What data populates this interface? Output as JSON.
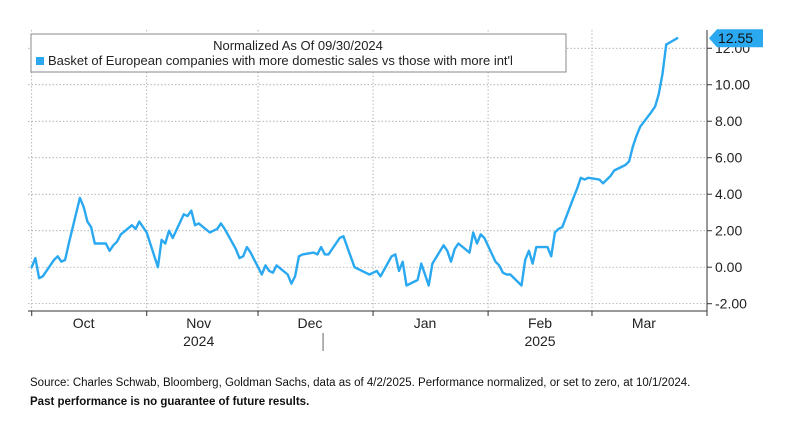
{
  "chart_data": {
    "type": "line",
    "title": "Normalized As Of 09/30/2024",
    "series": [
      {
        "name": "Basket of European companies with more domestic sales vs those with more int'l",
        "color": "#2aa8f0",
        "values": [
          [
            "2024-10-01",
            0.0
          ],
          [
            "2024-10-02",
            0.5
          ],
          [
            "2024-10-03",
            -0.6
          ],
          [
            "2024-10-04",
            -0.5
          ],
          [
            "2024-10-07",
            0.4
          ],
          [
            "2024-10-08",
            0.6
          ],
          [
            "2024-10-09",
            0.3
          ],
          [
            "2024-10-10",
            0.4
          ],
          [
            "2024-10-11",
            1.3
          ],
          [
            "2024-10-14",
            3.8
          ],
          [
            "2024-10-15",
            3.3
          ],
          [
            "2024-10-16",
            2.5
          ],
          [
            "2024-10-17",
            2.2
          ],
          [
            "2024-10-18",
            1.3
          ],
          [
            "2024-10-21",
            1.3
          ],
          [
            "2024-10-22",
            0.9
          ],
          [
            "2024-10-23",
            1.2
          ],
          [
            "2024-10-24",
            1.4
          ],
          [
            "2024-10-25",
            1.8
          ],
          [
            "2024-10-28",
            2.3
          ],
          [
            "2024-10-29",
            2.1
          ],
          [
            "2024-10-30",
            2.5
          ],
          [
            "2024-10-31",
            2.2
          ],
          [
            "2024-11-01",
            1.9
          ],
          [
            "2024-11-04",
            0.0
          ],
          [
            "2024-11-05",
            1.5
          ],
          [
            "2024-11-06",
            1.3
          ],
          [
            "2024-11-07",
            2.0
          ],
          [
            "2024-11-08",
            1.6
          ],
          [
            "2024-11-11",
            2.9
          ],
          [
            "2024-11-12",
            2.8
          ],
          [
            "2024-11-13",
            3.1
          ],
          [
            "2024-11-14",
            2.3
          ],
          [
            "2024-11-15",
            2.4
          ],
          [
            "2024-11-18",
            1.9
          ],
          [
            "2024-11-19",
            2.0
          ],
          [
            "2024-11-20",
            2.1
          ],
          [
            "2024-11-21",
            2.4
          ],
          [
            "2024-11-22",
            2.1
          ],
          [
            "2024-11-25",
            1.0
          ],
          [
            "2024-11-26",
            0.5
          ],
          [
            "2024-11-27",
            0.6
          ],
          [
            "2024-11-28",
            1.1
          ],
          [
            "2024-11-29",
            0.8
          ],
          [
            "2024-12-02",
            -0.4
          ],
          [
            "2024-12-03",
            0.1
          ],
          [
            "2024-12-04",
            -0.2
          ],
          [
            "2024-12-05",
            -0.3
          ],
          [
            "2024-12-06",
            0.1
          ],
          [
            "2024-12-09",
            -0.4
          ],
          [
            "2024-12-10",
            -0.9
          ],
          [
            "2024-12-11",
            -0.5
          ],
          [
            "2024-12-12",
            0.6
          ],
          [
            "2024-12-13",
            0.7
          ],
          [
            "2024-12-16",
            0.8
          ],
          [
            "2024-12-17",
            0.7
          ],
          [
            "2024-12-18",
            1.1
          ],
          [
            "2024-12-19",
            0.7
          ],
          [
            "2024-12-20",
            0.7
          ],
          [
            "2024-12-23",
            1.6
          ],
          [
            "2024-12-24",
            1.7
          ],
          [
            "2024-12-27",
            0.0
          ],
          [
            "2024-12-30",
            -0.3
          ],
          [
            "2024-12-31",
            -0.4
          ],
          [
            "2025-01-02",
            -0.2
          ],
          [
            "2025-01-03",
            -0.5
          ],
          [
            "2025-01-06",
            0.6
          ],
          [
            "2025-01-07",
            0.7
          ],
          [
            "2025-01-08",
            -0.2
          ],
          [
            "2025-01-09",
            0.3
          ],
          [
            "2025-01-10",
            -1.0
          ],
          [
            "2025-01-13",
            -0.7
          ],
          [
            "2025-01-14",
            0.2
          ],
          [
            "2025-01-15",
            -0.4
          ],
          [
            "2025-01-16",
            -1.0
          ],
          [
            "2025-01-17",
            0.2
          ],
          [
            "2025-01-20",
            1.2
          ],
          [
            "2025-01-21",
            0.9
          ],
          [
            "2025-01-22",
            0.3
          ],
          [
            "2025-01-23",
            1.0
          ],
          [
            "2025-01-24",
            1.3
          ],
          [
            "2025-01-27",
            0.8
          ],
          [
            "2025-01-28",
            1.9
          ],
          [
            "2025-01-29",
            1.3
          ],
          [
            "2025-01-30",
            1.8
          ],
          [
            "2025-01-31",
            1.6
          ],
          [
            "2025-02-03",
            0.3
          ],
          [
            "2025-02-04",
            0.1
          ],
          [
            "2025-02-05",
            -0.3
          ],
          [
            "2025-02-06",
            -0.4
          ],
          [
            "2025-02-07",
            -0.4
          ],
          [
            "2025-02-10",
            -1.0
          ],
          [
            "2025-02-11",
            0.4
          ],
          [
            "2025-02-12",
            0.9
          ],
          [
            "2025-02-13",
            0.2
          ],
          [
            "2025-02-14",
            1.1
          ],
          [
            "2025-02-17",
            1.1
          ],
          [
            "2025-02-18",
            0.6
          ],
          [
            "2025-02-19",
            1.9
          ],
          [
            "2025-02-20",
            2.1
          ],
          [
            "2025-02-21",
            2.2
          ],
          [
            "2025-02-24",
            3.8
          ],
          [
            "2025-02-25",
            4.3
          ],
          [
            "2025-02-26",
            4.9
          ],
          [
            "2025-02-27",
            4.8
          ],
          [
            "2025-02-28",
            4.9
          ],
          [
            "2025-03-03",
            4.8
          ],
          [
            "2025-03-04",
            4.6
          ],
          [
            "2025-03-05",
            4.8
          ],
          [
            "2025-03-06",
            5.0
          ],
          [
            "2025-03-07",
            5.3
          ],
          [
            "2025-03-10",
            5.6
          ],
          [
            "2025-03-11",
            5.8
          ],
          [
            "2025-03-12",
            6.6
          ],
          [
            "2025-03-13",
            7.2
          ],
          [
            "2025-03-14",
            7.7
          ],
          [
            "2025-03-17",
            8.5
          ],
          [
            "2025-03-18",
            8.8
          ],
          [
            "2025-03-19",
            9.5
          ],
          [
            "2025-03-20",
            10.6
          ],
          [
            "2025-03-21",
            12.2
          ],
          [
            "2025-03-24",
            12.55
          ]
        ]
      }
    ],
    "last_value_label": "12.55",
    "y_ticks": [
      "-2.00",
      "0.00",
      "2.00",
      "4.00",
      "6.00",
      "8.00",
      "10.00",
      "12.00"
    ],
    "ylim": [
      -2.4,
      13.0
    ],
    "x_ticks": [
      {
        "date": "2024-10-15",
        "label": "Oct"
      },
      {
        "date": "2024-11-15",
        "label": "Nov"
      },
      {
        "date": "2024-12-15",
        "label": "Dec"
      },
      {
        "date": "2025-01-15",
        "label": "Jan"
      },
      {
        "date": "2025-02-15",
        "label": "Feb"
      },
      {
        "date": "2025-03-15",
        "label": "Mar"
      }
    ],
    "year_labels": [
      {
        "date": "2024-11-15",
        "label": "2024"
      },
      {
        "date": "2025-02-15",
        "label": "2025"
      }
    ],
    "xlim": [
      "2024-09-30",
      "2025-04-01"
    ],
    "grid": true,
    "legend": "top-left"
  },
  "footer": {
    "source": "Source: Charles Schwab, Bloomberg, Goldman Sachs, data as of 4/2/2025. Performance normalized, or set to zero, at 10/1/2024.",
    "disclaimer": "Past performance is no guarantee of future results."
  }
}
